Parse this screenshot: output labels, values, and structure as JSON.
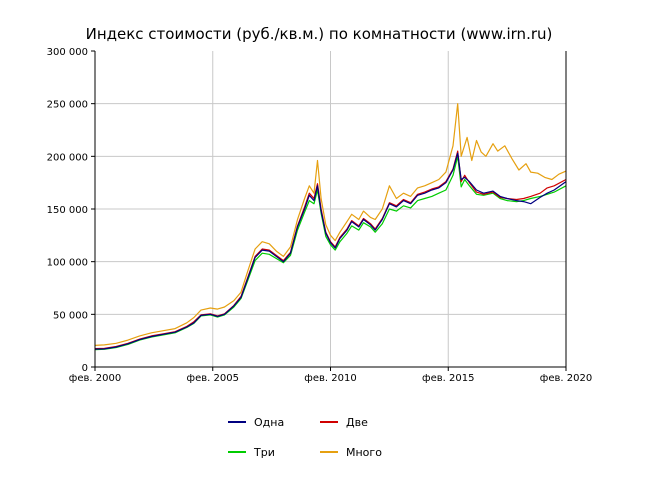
{
  "chart_data": {
    "type": "line",
    "title": "Индекс стоимости (руб./кв.м.) по комнатности (www.irn.ru)",
    "xlabel": "",
    "ylabel": "",
    "xlim": [
      2000.1,
      2020.1
    ],
    "ylim": [
      0,
      300000
    ],
    "x_ticks": [
      2000.1,
      2005.1,
      2010.1,
      2015.1,
      2020.1
    ],
    "x_tick_labels": [
      "фев. 2000",
      "фев. 2005",
      "фев. 2010",
      "фев. 2015",
      "фев. 2020"
    ],
    "y_ticks": [
      0,
      50000,
      100000,
      150000,
      200000,
      250000,
      300000
    ],
    "y_tick_labels": [
      "0",
      "50 000",
      "100 000",
      "150 000",
      "200 000",
      "250 000",
      "300 000"
    ],
    "grid": true,
    "legend_position": "bottom",
    "series": [
      {
        "name": "Одна",
        "color": "#000080",
        "points": [
          [
            2000.1,
            17000
          ],
          [
            2000.5,
            17200
          ],
          [
            2001.0,
            19000
          ],
          [
            2001.5,
            22000
          ],
          [
            2002.0,
            26000
          ],
          [
            2002.5,
            29000
          ],
          [
            2003.0,
            31000
          ],
          [
            2003.5,
            33000
          ],
          [
            2004.0,
            38000
          ],
          [
            2004.3,
            42000
          ],
          [
            2004.6,
            49000
          ],
          [
            2005.0,
            50000
          ],
          [
            2005.3,
            48000
          ],
          [
            2005.6,
            50000
          ],
          [
            2006.0,
            58000
          ],
          [
            2006.3,
            66000
          ],
          [
            2006.6,
            85000
          ],
          [
            2006.9,
            104000
          ],
          [
            2007.2,
            111000
          ],
          [
            2007.5,
            110000
          ],
          [
            2007.8,
            105000
          ],
          [
            2008.1,
            100000
          ],
          [
            2008.4,
            108000
          ],
          [
            2008.7,
            133000
          ],
          [
            2009.0,
            150000
          ],
          [
            2009.2,
            163000
          ],
          [
            2009.4,
            158000
          ],
          [
            2009.55,
            172000
          ],
          [
            2009.7,
            148000
          ],
          [
            2009.9,
            127000
          ],
          [
            2010.1,
            118000
          ],
          [
            2010.3,
            113000
          ],
          [
            2010.5,
            122000
          ],
          [
            2010.8,
            130000
          ],
          [
            2011.0,
            138000
          ],
          [
            2011.3,
            133000
          ],
          [
            2011.5,
            140000
          ],
          [
            2011.8,
            135000
          ],
          [
            2012.0,
            130000
          ],
          [
            2012.3,
            140000
          ],
          [
            2012.6,
            155000
          ],
          [
            2012.9,
            152000
          ],
          [
            2013.2,
            158000
          ],
          [
            2013.5,
            155000
          ],
          [
            2013.8,
            163000
          ],
          [
            2014.1,
            165000
          ],
          [
            2014.4,
            168000
          ],
          [
            2014.7,
            170000
          ],
          [
            2015.0,
            175000
          ],
          [
            2015.3,
            187000
          ],
          [
            2015.5,
            203000
          ],
          [
            2015.65,
            178000
          ],
          [
            2015.8,
            180000
          ],
          [
            2016.0,
            176000
          ],
          [
            2016.3,
            168000
          ],
          [
            2016.6,
            165000
          ],
          [
            2017.0,
            167000
          ],
          [
            2017.3,
            162000
          ],
          [
            2017.6,
            160000
          ],
          [
            2018.0,
            158000
          ],
          [
            2018.3,
            157000
          ],
          [
            2018.6,
            155000
          ],
          [
            2019.0,
            161000
          ],
          [
            2019.3,
            165000
          ],
          [
            2019.6,
            168000
          ],
          [
            2020.1,
            176000
          ]
        ]
      },
      {
        "name": "Две",
        "color": "#d00000",
        "points": [
          [
            2000.1,
            17500
          ],
          [
            2000.5,
            17800
          ],
          [
            2001.0,
            19500
          ],
          [
            2001.5,
            22500
          ],
          [
            2002.0,
            26500
          ],
          [
            2002.5,
            29500
          ],
          [
            2003.0,
            31500
          ],
          [
            2003.5,
            33500
          ],
          [
            2004.0,
            38500
          ],
          [
            2004.3,
            43000
          ],
          [
            2004.6,
            49500
          ],
          [
            2005.0,
            50500
          ],
          [
            2005.3,
            48500
          ],
          [
            2005.6,
            50500
          ],
          [
            2006.0,
            58500
          ],
          [
            2006.3,
            67000
          ],
          [
            2006.6,
            86000
          ],
          [
            2006.9,
            105000
          ],
          [
            2007.2,
            112000
          ],
          [
            2007.5,
            111000
          ],
          [
            2007.8,
            106000
          ],
          [
            2008.1,
            101000
          ],
          [
            2008.4,
            109000
          ],
          [
            2008.7,
            134000
          ],
          [
            2009.0,
            152000
          ],
          [
            2009.2,
            165000
          ],
          [
            2009.4,
            160000
          ],
          [
            2009.55,
            174000
          ],
          [
            2009.7,
            150000
          ],
          [
            2009.9,
            128000
          ],
          [
            2010.1,
            119000
          ],
          [
            2010.3,
            114000
          ],
          [
            2010.5,
            123000
          ],
          [
            2010.8,
            131000
          ],
          [
            2011.0,
            139000
          ],
          [
            2011.3,
            134000
          ],
          [
            2011.5,
            141000
          ],
          [
            2011.8,
            136000
          ],
          [
            2012.0,
            131000
          ],
          [
            2012.3,
            141000
          ],
          [
            2012.6,
            156000
          ],
          [
            2012.9,
            153000
          ],
          [
            2013.2,
            159000
          ],
          [
            2013.5,
            156000
          ],
          [
            2013.8,
            164000
          ],
          [
            2014.1,
            166000
          ],
          [
            2014.4,
            169000
          ],
          [
            2014.7,
            171000
          ],
          [
            2015.0,
            176000
          ],
          [
            2015.3,
            188000
          ],
          [
            2015.5,
            205000
          ],
          [
            2015.65,
            176000
          ],
          [
            2015.8,
            182000
          ],
          [
            2016.0,
            175000
          ],
          [
            2016.3,
            166000
          ],
          [
            2016.6,
            164000
          ],
          [
            2017.0,
            166000
          ],
          [
            2017.3,
            161000
          ],
          [
            2017.6,
            160000
          ],
          [
            2018.0,
            159000
          ],
          [
            2018.3,
            160000
          ],
          [
            2018.6,
            162000
          ],
          [
            2019.0,
            165000
          ],
          [
            2019.3,
            170000
          ],
          [
            2019.6,
            172000
          ],
          [
            2020.1,
            178000
          ]
        ]
      },
      {
        "name": "Три",
        "color": "#00cc00",
        "points": [
          [
            2000.1,
            16500
          ],
          [
            2000.5,
            16800
          ],
          [
            2001.0,
            18500
          ],
          [
            2001.5,
            21500
          ],
          [
            2002.0,
            25500
          ],
          [
            2002.5,
            28500
          ],
          [
            2003.0,
            30500
          ],
          [
            2003.5,
            32500
          ],
          [
            2004.0,
            37500
          ],
          [
            2004.3,
            41500
          ],
          [
            2004.6,
            48500
          ],
          [
            2005.0,
            49500
          ],
          [
            2005.3,
            47500
          ],
          [
            2005.6,
            49500
          ],
          [
            2006.0,
            57000
          ],
          [
            2006.3,
            65000
          ],
          [
            2006.6,
            83000
          ],
          [
            2006.9,
            101000
          ],
          [
            2007.2,
            108000
          ],
          [
            2007.5,
            107000
          ],
          [
            2007.8,
            103000
          ],
          [
            2008.1,
            99000
          ],
          [
            2008.4,
            106000
          ],
          [
            2008.7,
            130000
          ],
          [
            2009.0,
            147000
          ],
          [
            2009.2,
            158000
          ],
          [
            2009.4,
            155000
          ],
          [
            2009.55,
            168000
          ],
          [
            2009.7,
            146000
          ],
          [
            2009.9,
            124000
          ],
          [
            2010.1,
            116000
          ],
          [
            2010.3,
            111000
          ],
          [
            2010.5,
            119000
          ],
          [
            2010.8,
            127000
          ],
          [
            2011.0,
            134000
          ],
          [
            2011.3,
            130000
          ],
          [
            2011.5,
            137000
          ],
          [
            2011.8,
            133000
          ],
          [
            2012.0,
            128000
          ],
          [
            2012.3,
            136000
          ],
          [
            2012.6,
            150000
          ],
          [
            2012.9,
            148000
          ],
          [
            2013.2,
            153000
          ],
          [
            2013.5,
            151000
          ],
          [
            2013.8,
            158000
          ],
          [
            2014.1,
            160000
          ],
          [
            2014.4,
            162000
          ],
          [
            2014.7,
            165000
          ],
          [
            2015.0,
            168000
          ],
          [
            2015.3,
            182000
          ],
          [
            2015.5,
            200000
          ],
          [
            2015.65,
            171000
          ],
          [
            2015.8,
            178000
          ],
          [
            2016.0,
            172000
          ],
          [
            2016.3,
            164000
          ],
          [
            2016.6,
            163000
          ],
          [
            2017.0,
            165000
          ],
          [
            2017.3,
            160000
          ],
          [
            2017.6,
            158000
          ],
          [
            2018.0,
            157000
          ],
          [
            2018.3,
            158000
          ],
          [
            2018.6,
            160000
          ],
          [
            2019.0,
            162000
          ],
          [
            2019.3,
            164000
          ],
          [
            2019.6,
            166000
          ],
          [
            2020.1,
            172000
          ]
        ]
      },
      {
        "name": "Много",
        "color": "#e6a010",
        "points": [
          [
            2000.1,
            20500
          ],
          [
            2000.5,
            21000
          ],
          [
            2001.0,
            22500
          ],
          [
            2001.5,
            25500
          ],
          [
            2002.0,
            29500
          ],
          [
            2002.5,
            32500
          ],
          [
            2003.0,
            34500
          ],
          [
            2003.5,
            36500
          ],
          [
            2004.0,
            42000
          ],
          [
            2004.3,
            47000
          ],
          [
            2004.6,
            54000
          ],
          [
            2005.0,
            56000
          ],
          [
            2005.3,
            55000
          ],
          [
            2005.6,
            57000
          ],
          [
            2006.0,
            63000
          ],
          [
            2006.3,
            71000
          ],
          [
            2006.6,
            92000
          ],
          [
            2006.9,
            112000
          ],
          [
            2007.2,
            119000
          ],
          [
            2007.5,
            117000
          ],
          [
            2007.8,
            110000
          ],
          [
            2008.1,
            105000
          ],
          [
            2008.4,
            114000
          ],
          [
            2008.7,
            140000
          ],
          [
            2009.0,
            160000
          ],
          [
            2009.2,
            172000
          ],
          [
            2009.4,
            165000
          ],
          [
            2009.55,
            196000
          ],
          [
            2009.7,
            160000
          ],
          [
            2009.9,
            135000
          ],
          [
            2010.1,
            125000
          ],
          [
            2010.3,
            120000
          ],
          [
            2010.5,
            128000
          ],
          [
            2010.8,
            138000
          ],
          [
            2011.0,
            145000
          ],
          [
            2011.3,
            140000
          ],
          [
            2011.5,
            148000
          ],
          [
            2011.8,
            142000
          ],
          [
            2012.0,
            140000
          ],
          [
            2012.3,
            150000
          ],
          [
            2012.6,
            172000
          ],
          [
            2012.9,
            160000
          ],
          [
            2013.2,
            165000
          ],
          [
            2013.5,
            162000
          ],
          [
            2013.8,
            170000
          ],
          [
            2014.1,
            172000
          ],
          [
            2014.4,
            175000
          ],
          [
            2014.7,
            178000
          ],
          [
            2015.0,
            185000
          ],
          [
            2015.3,
            210000
          ],
          [
            2015.5,
            250000
          ],
          [
            2015.65,
            200000
          ],
          [
            2015.9,
            218000
          ],
          [
            2016.1,
            196000
          ],
          [
            2016.3,
            215000
          ],
          [
            2016.5,
            204000
          ],
          [
            2016.7,
            200000
          ],
          [
            2017.0,
            212000
          ],
          [
            2017.2,
            205000
          ],
          [
            2017.5,
            210000
          ],
          [
            2017.8,
            198000
          ],
          [
            2018.1,
            187000
          ],
          [
            2018.4,
            193000
          ],
          [
            2018.6,
            185000
          ],
          [
            2018.9,
            184000
          ],
          [
            2019.2,
            180000
          ],
          [
            2019.5,
            178000
          ],
          [
            2019.8,
            183000
          ],
          [
            2020.1,
            186000
          ]
        ]
      }
    ]
  }
}
